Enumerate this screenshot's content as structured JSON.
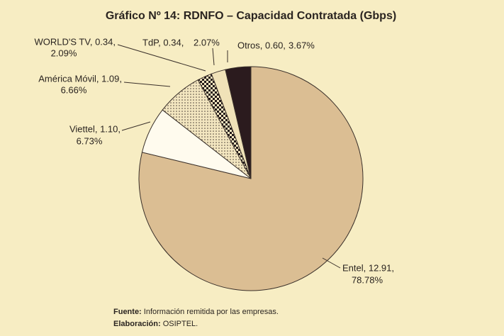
{
  "chart_data": {
    "type": "pie",
    "title": "Gráfico Nº 14: RDNFO – Capacidad Contratada (Gbps)",
    "categories": [
      "Entel, 12.91,",
      "Viettel, 1.10,",
      "América Móvil, 1.09,",
      "WORLD'S TV, 0.34,",
      "TdP, 0.34,",
      "Otros, 0.60,"
    ],
    "values": [
      78.78,
      6.73,
      6.66,
      2.09,
      2.07,
      3.67
    ],
    "value_labels": [
      "78.78%",
      "6.73%",
      "6.66%",
      "2.09%",
      "2.07%",
      "3.67%"
    ],
    "colors": [
      "#dbbe93",
      "#fffbee",
      "url(#dots)",
      "url(#checker)",
      "#f0e2b8",
      "#2b1b1e"
    ]
  },
  "source": {
    "label": "Fuente:",
    "text": "Información remitida por las empresas."
  },
  "credit": {
    "label": "Elaboración:",
    "text": "OSIPTEL."
  }
}
